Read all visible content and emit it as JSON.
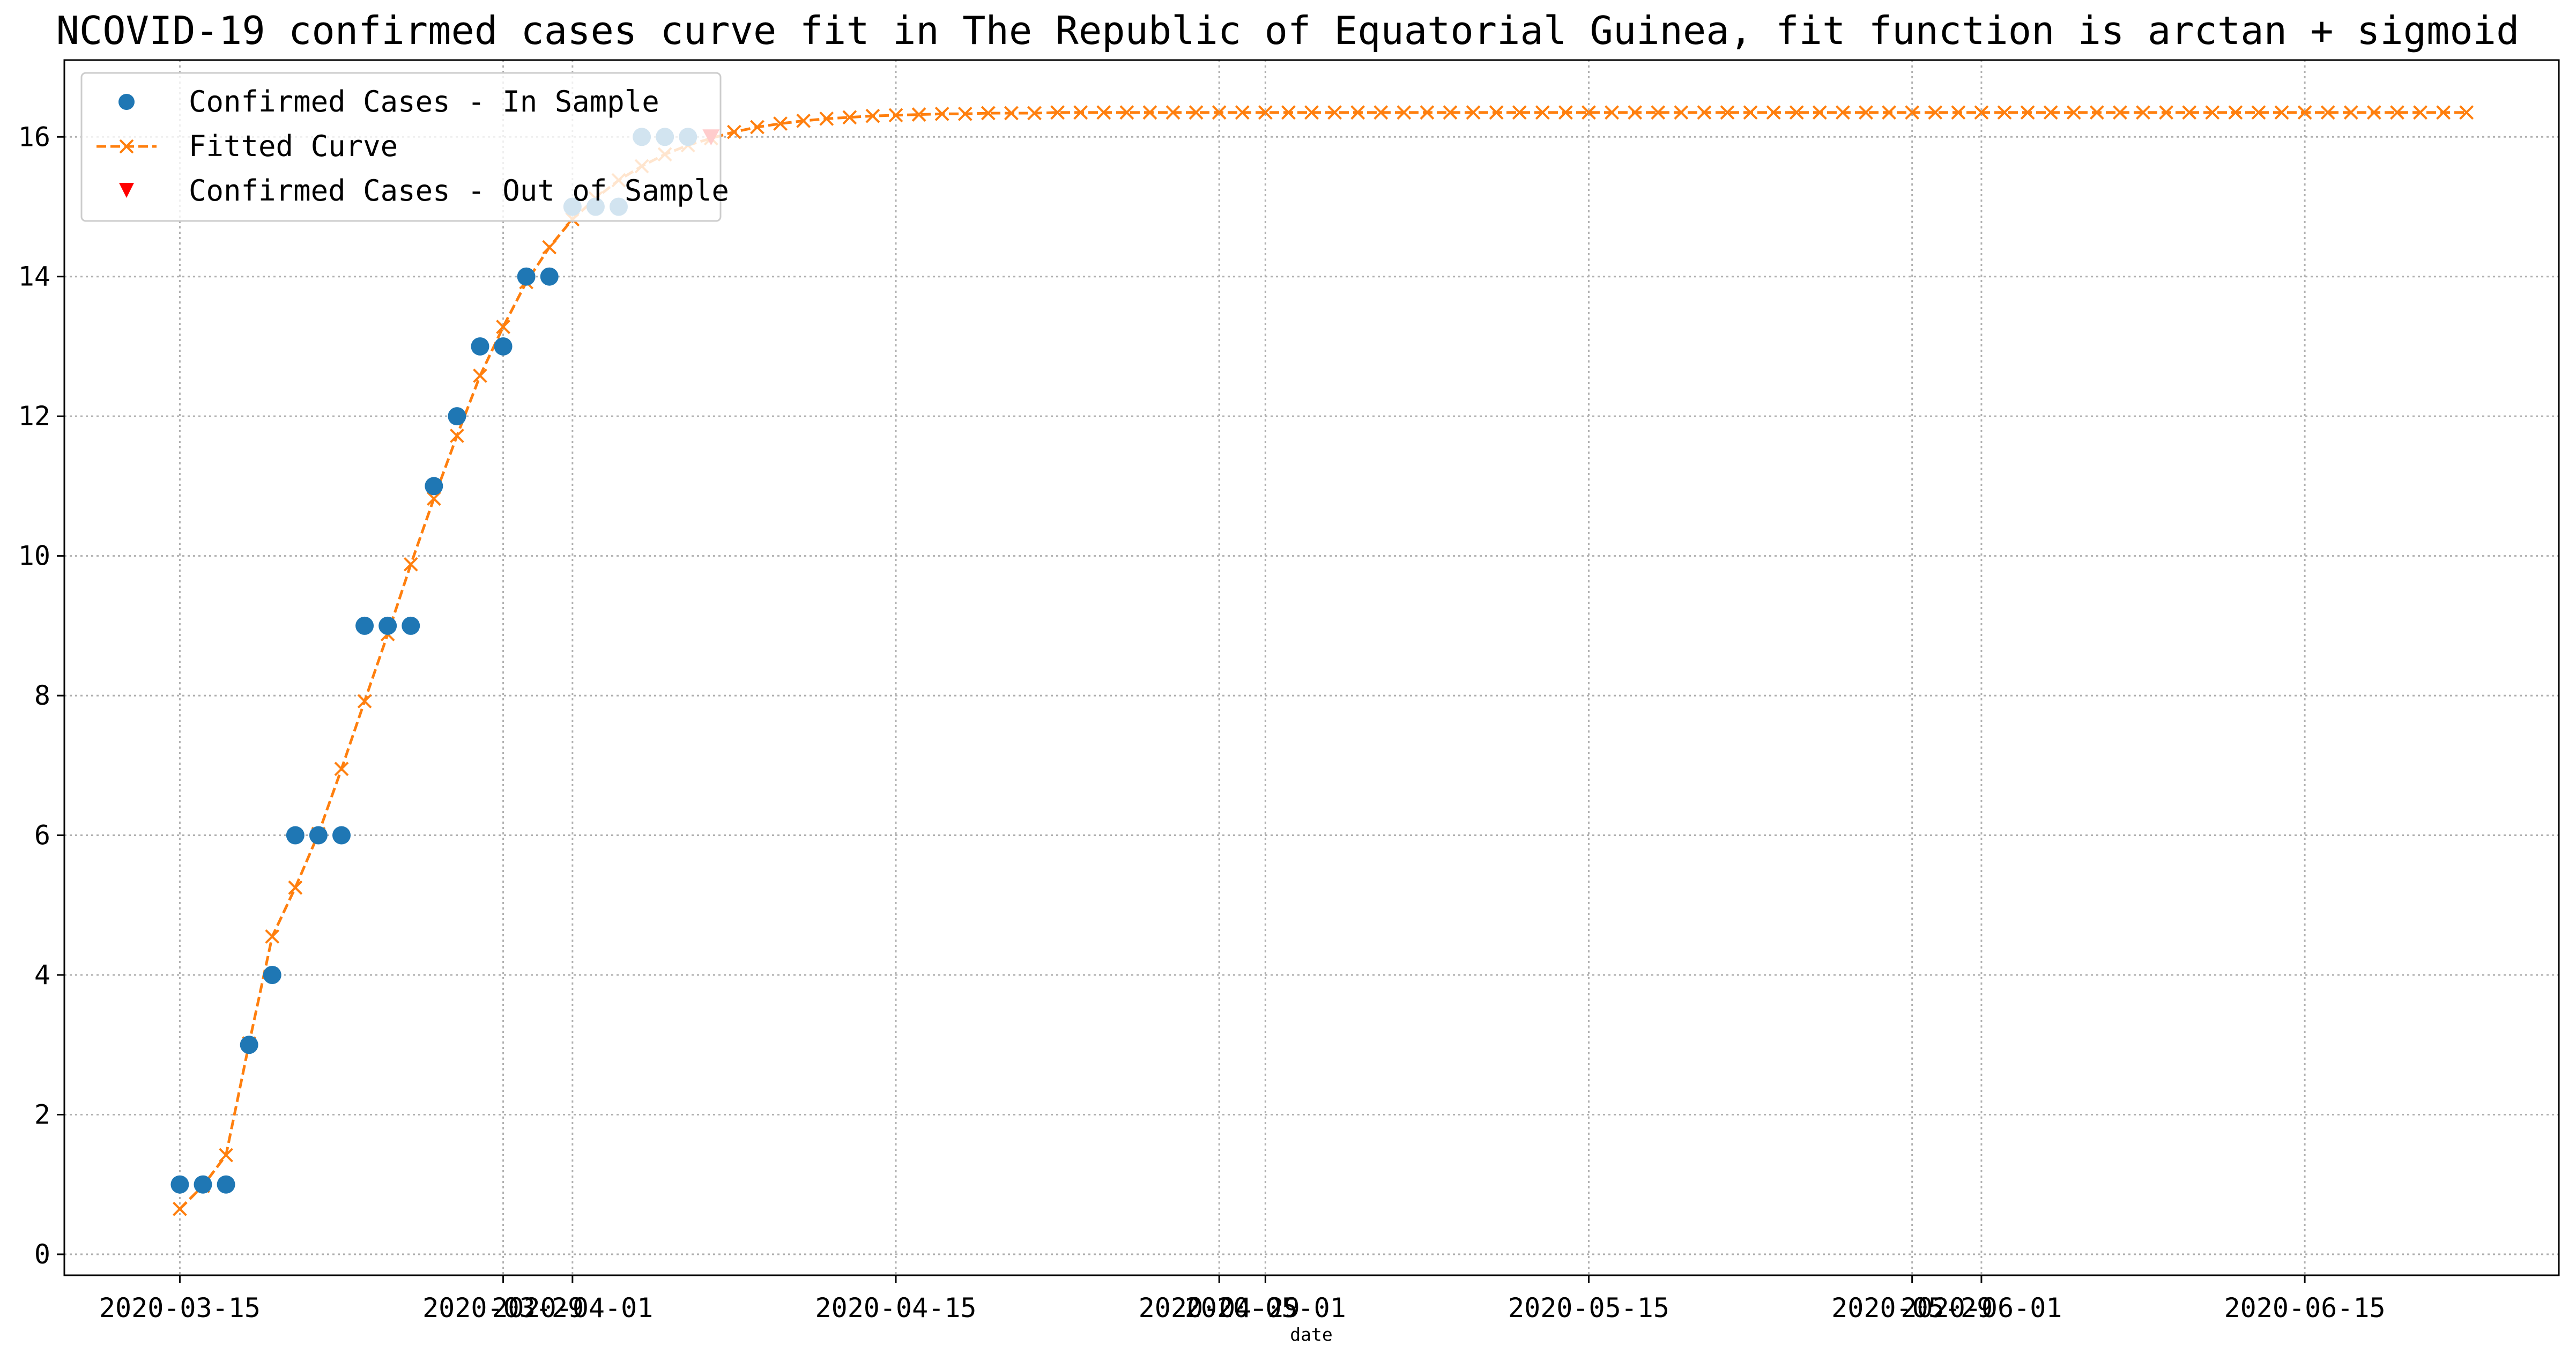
{
  "chart_data": {
    "type": "line",
    "title": "NCOVID-19 confirmed cases curve fit in The Republic of Equatorial Guinea, fit function is arctan + sigmoid",
    "xlabel": "date",
    "ylabel": "",
    "ylim": [
      -0.3,
      17.1
    ],
    "xlim": [
      "2020-03-10",
      "2020-06-26"
    ],
    "grid": true,
    "legend_position": "top-left",
    "x_ticks": [
      "2020-03-15",
      "2020-03-29",
      "2020-04-01",
      "2020-04-15",
      "2020-04-29",
      "2020-05-01",
      "2020-05-15",
      "2020-05-29",
      "2020-06-01",
      "2020-06-15"
    ],
    "y_ticks": [
      0,
      2,
      4,
      6,
      8,
      10,
      12,
      14,
      16
    ],
    "colors": {
      "in_sample": "#1f77b4",
      "fitted": "#ff7f0e",
      "out_sample": "#ff0000"
    },
    "series": [
      {
        "name": "Confirmed Cases - In Sample",
        "style": "circle-markers",
        "x": [
          "2020-03-15",
          "2020-03-16",
          "2020-03-17",
          "2020-03-18",
          "2020-03-19",
          "2020-03-20",
          "2020-03-21",
          "2020-03-22",
          "2020-03-23",
          "2020-03-24",
          "2020-03-25",
          "2020-03-26",
          "2020-03-27",
          "2020-03-28",
          "2020-03-29",
          "2020-03-30",
          "2020-03-31",
          "2020-04-01",
          "2020-04-02",
          "2020-04-03",
          "2020-04-04",
          "2020-04-05",
          "2020-04-06"
        ],
        "values": [
          1,
          1,
          1,
          3,
          4,
          6,
          6,
          6,
          9,
          9,
          9,
          11,
          12,
          13,
          13,
          14,
          14,
          15,
          15,
          15,
          16,
          16,
          16
        ]
      },
      {
        "name": "Fitted Curve",
        "style": "dashed-line-x-markers",
        "start": "2020-03-15",
        "values": [
          0.65,
          0.98,
          1.42,
          3.02,
          4.55,
          5.25,
          6.02,
          6.95,
          7.92,
          8.88,
          9.88,
          10.82,
          11.72,
          12.58,
          13.28,
          13.92,
          14.42,
          14.82,
          15.12,
          15.38,
          15.58,
          15.75,
          15.88,
          15.98,
          16.07,
          16.14,
          16.19,
          16.23,
          16.26,
          16.28,
          16.3,
          16.31,
          16.32,
          16.33,
          16.33,
          16.34,
          16.34,
          16.34,
          16.35,
          16.35,
          16.35,
          16.35,
          16.35,
          16.35,
          16.35,
          16.35,
          16.35,
          16.35,
          16.35,
          16.35,
          16.35,
          16.35,
          16.35,
          16.35,
          16.35,
          16.35,
          16.35,
          16.35,
          16.35,
          16.35,
          16.35,
          16.35,
          16.35,
          16.35,
          16.35,
          16.35,
          16.35,
          16.35,
          16.35,
          16.35,
          16.35,
          16.35,
          16.35,
          16.35,
          16.35,
          16.35,
          16.35,
          16.35,
          16.35,
          16.35,
          16.35,
          16.35,
          16.35,
          16.35,
          16.35,
          16.35,
          16.35,
          16.35,
          16.35,
          16.35,
          16.35,
          16.35,
          16.35,
          16.35,
          16.35,
          16.35,
          16.35,
          16.35,
          16.35,
          16.35
        ]
      },
      {
        "name": "Confirmed Cases - Out of Sample",
        "style": "triangle-down-markers",
        "x": [
          "2020-04-07"
        ],
        "values": [
          16
        ]
      }
    ]
  }
}
